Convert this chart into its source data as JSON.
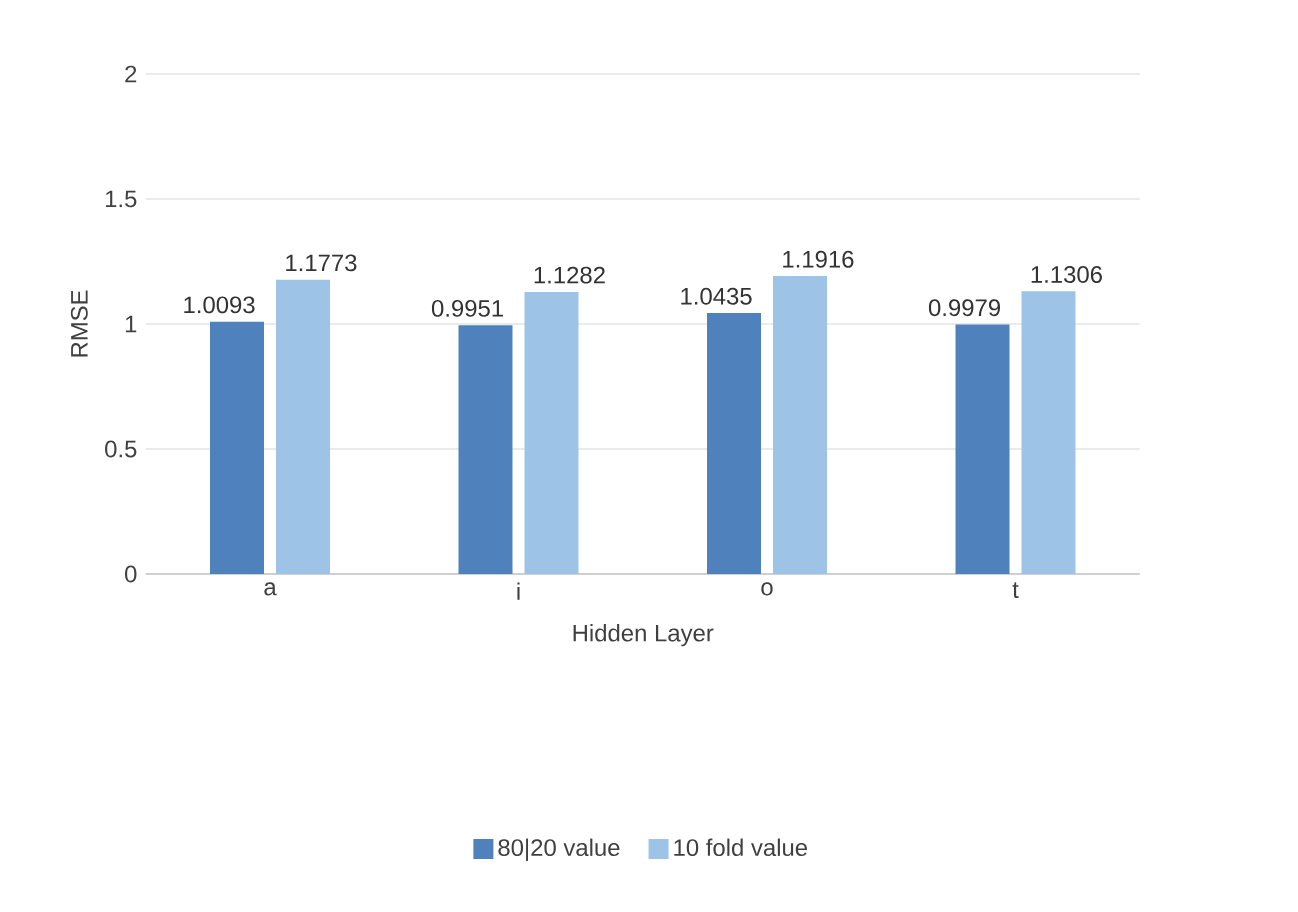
{
  "chart_data": {
    "type": "bar",
    "xlabel": "Hidden Layer",
    "ylabel": "RMSE",
    "categories": [
      "a",
      "i",
      "o",
      "t"
    ],
    "series": [
      {
        "name": "80|20 value",
        "color": "#4f81bd",
        "values": [
          1.0093,
          0.9951,
          1.0435,
          0.9979
        ]
      },
      {
        "name": "10 fold value",
        "color": "#9dc3e6",
        "values": [
          1.1773,
          1.1282,
          1.1916,
          1.1306
        ]
      }
    ],
    "ylim": [
      0,
      2
    ],
    "yticks": [
      0,
      0.5,
      1,
      1.5,
      2
    ],
    "grid": "y",
    "legend": "bottom",
    "data_labels": true
  }
}
